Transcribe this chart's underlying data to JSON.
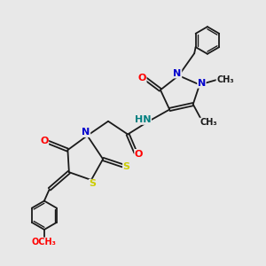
{
  "background_color": "#e8e8e8",
  "bond_color": "#1a1a1a",
  "atom_colors": {
    "N": "#0000cd",
    "O": "#ff0000",
    "S": "#cccc00",
    "H": "#008080",
    "C": "#1a1a1a"
  },
  "figsize": [
    3.0,
    3.0
  ],
  "dpi": 100,
  "xlim": [
    0,
    10
  ],
  "ylim": [
    0,
    10
  ]
}
